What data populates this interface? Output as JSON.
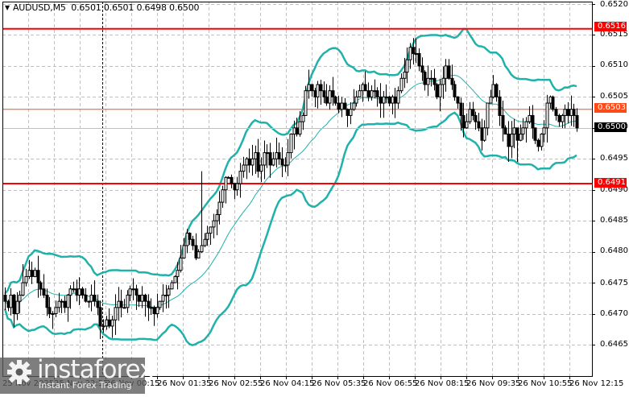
{
  "header": {
    "symbol": "AUDUSD,M5",
    "ohlc": "0.6501 0.6501 0.6498 0.6500",
    "title_text": "AUDUSD,M5  0.6501 0.6501 0.6498 0.6500"
  },
  "price_axis": {
    "labels": [
      "0.6520",
      "0.6515",
      "0.6510",
      "0.6505",
      "0.6500",
      "0.6495",
      "0.6490",
      "0.6485",
      "0.6480",
      "0.6475",
      "0.6470",
      "0.6465"
    ],
    "max": 0.652,
    "min": 0.6465
  },
  "tags": {
    "resistance": {
      "label": "0.6516",
      "price": 0.6516,
      "color": "#ff0000"
    },
    "pivot": {
      "label": "0.6503",
      "price": 0.6503,
      "color": "#ff4a1a"
    },
    "current": {
      "label": "0.6500",
      "price": 0.65,
      "color": "#000000"
    },
    "support": {
      "label": "0.6491",
      "price": 0.6491,
      "color": "#ff0000"
    }
  },
  "time_axis": {
    "labels": [
      "25 Nov 2025",
      "25 Nov 22:55",
      "26 Nov 00:15",
      "26 Nov 01:35",
      "26 Nov 02:55",
      "26 Nov 04:15",
      "26 Nov 05:35",
      "26 Nov 06:55",
      "26 Nov 08:15",
      "26 Nov 09:35",
      "26 Nov 10:55",
      "26 Nov 12:15"
    ]
  },
  "colors": {
    "band": "#20b2aa",
    "horizontal_red": "#ff0000",
    "pivot_orange": "#ff4a1a",
    "grid": "#c0c0c0",
    "candle": "#000000"
  },
  "watermark": {
    "brand": "instaforex",
    "tagline": "Instant Forex Trading"
  },
  "chart_data": {
    "type": "candlestick",
    "title": "AUDUSD,M5",
    "ylim": [
      0.6465,
      0.652
    ],
    "closes": [
      0.6472,
      0.6471,
      0.6473,
      0.647,
      0.6472,
      0.6473,
      0.6475,
      0.6476,
      0.6477,
      0.6476,
      0.6477,
      0.6475,
      0.6474,
      0.6473,
      0.6471,
      0.647,
      0.647,
      0.6471,
      0.6472,
      0.6472,
      0.6471,
      0.6473,
      0.6474,
      0.6474,
      0.6473,
      0.6474,
      0.6473,
      0.6472,
      0.6472,
      0.6473,
      0.6472,
      0.6471,
      0.6468,
      0.6468,
      0.6469,
      0.6468,
      0.6469,
      0.6471,
      0.6472,
      0.6471,
      0.6471,
      0.6473,
      0.6474,
      0.6474,
      0.6473,
      0.6472,
      0.6473,
      0.6472,
      0.6471,
      0.6471,
      0.647,
      0.6471,
      0.6472,
      0.6473,
      0.6473,
      0.6474,
      0.6475,
      0.6476,
      0.6477,
      0.6479,
      0.6481,
      0.6483,
      0.6482,
      0.6481,
      0.6479,
      0.648,
      0.6481,
      0.6482,
      0.6483,
      0.6484,
      0.6485,
      0.6486,
      0.6488,
      0.649,
      0.6492,
      0.6492,
      0.6491,
      0.649,
      0.6491,
      0.6493,
      0.6494,
      0.6495,
      0.6494,
      0.6495,
      0.6496,
      0.6493,
      0.6494,
      0.6496,
      0.6496,
      0.6494,
      0.6495,
      0.6496,
      0.6495,
      0.6494,
      0.6494,
      0.6496,
      0.6499,
      0.65,
      0.6499,
      0.6501,
      0.6502,
      0.6506,
      0.6507,
      0.6506,
      0.6505,
      0.6507,
      0.6506,
      0.6505,
      0.6504,
      0.6506,
      0.6505,
      0.6504,
      0.6503,
      0.6504,
      0.6503,
      0.6502,
      0.6503,
      0.6504,
      0.6505,
      0.6506,
      0.6507,
      0.6506,
      0.6505,
      0.6506,
      0.6506,
      0.6505,
      0.6504,
      0.6505,
      0.6505,
      0.6504,
      0.6505,
      0.6504,
      0.6506,
      0.6508,
      0.6509,
      0.6511,
      0.6513,
      0.6512,
      0.6512,
      0.651,
      0.6509,
      0.6507,
      0.6508,
      0.6508,
      0.6507,
      0.6505,
      0.6507,
      0.6508,
      0.651,
      0.6508,
      0.6507,
      0.6505,
      0.6504,
      0.6502,
      0.65,
      0.6501,
      0.6503,
      0.6502,
      0.6501,
      0.65,
      0.6498,
      0.65,
      0.6504,
      0.6505,
      0.6507,
      0.6505,
      0.6502,
      0.65,
      0.6499,
      0.6497,
      0.6499,
      0.65,
      0.6498,
      0.6499,
      0.65,
      0.6501,
      0.6502,
      0.65,
      0.6498,
      0.6497,
      0.6499,
      0.65,
      0.6504,
      0.6505,
      0.6503,
      0.6502,
      0.6501,
      0.6502,
      0.6503,
      0.6502,
      0.6503,
      0.6502,
      0.65
    ],
    "horizontal_lines": [
      0.6516,
      0.6503,
      0.6491
    ],
    "current_price": 0.65,
    "indicators": [
      "Bollinger Bands upper",
      "Bollinger Bands middle",
      "Bollinger Bands lower"
    ]
  }
}
